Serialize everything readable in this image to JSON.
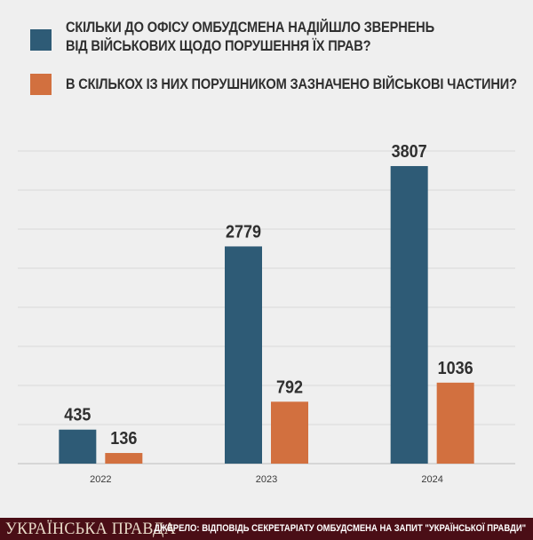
{
  "legend": {
    "complaints_line1": "СКІЛЬКИ ДО ОФІСУ ОМБУДСМЕНА НАДІЙШЛО ЗВЕРНЕНЬ",
    "complaints_line2": "ВІД ВІЙСЬКОВИХ ЩОДО ПОРУШЕННЯ ЇХ ПРАВ?",
    "units": "В СКІЛЬКОХ ІЗ НИХ ПОРУШНИКОМ ЗАЗНАЧЕНО ВІЙСЬКОВІ ЧАСТИНИ?"
  },
  "colors": {
    "complaints": "#2e5b76",
    "units": "#d2703f",
    "grid": "#d9d9d9",
    "footer": "#4a0e16"
  },
  "footer": {
    "brand": "УКРАЇНСЬКА ПРАВДА",
    "source": "ДЖЕРЕЛО: ВІДПОВІДЬ СЕКРЕТАРІАТУ ОМБУДСМЕНА НА ЗАПИТ \"УКРАЇНСЬКОЇ ПРАВДИ\""
  },
  "chart_data": {
    "type": "bar",
    "categories": [
      "2022",
      "2023",
      "2024"
    ],
    "series": [
      {
        "values": [
          435,
          2779,
          3807
        ]
      },
      {
        "values": [
          136,
          792,
          1036
        ]
      }
    ],
    "ylim": [
      0,
      4000
    ],
    "grid": true,
    "legend_position": "top"
  }
}
